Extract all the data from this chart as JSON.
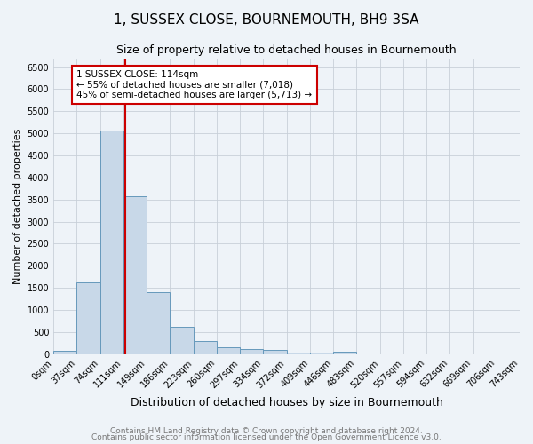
{
  "title": "1, SUSSEX CLOSE, BOURNEMOUTH, BH9 3SA",
  "subtitle": "Size of property relative to detached houses in Bournemouth",
  "xlabel": "Distribution of detached houses by size in Bournemouth",
  "ylabel": "Number of detached properties",
  "footnote1": "Contains HM Land Registry data © Crown copyright and database right 2024.",
  "footnote2": "Contains public sector information licensed under the Open Government Licence v3.0.",
  "bin_labels": [
    "0sqm",
    "37sqm",
    "74sqm",
    "111sqm",
    "149sqm",
    "186sqm",
    "223sqm",
    "260sqm",
    "297sqm",
    "334sqm",
    "372sqm",
    "409sqm",
    "446sqm",
    "483sqm",
    "520sqm",
    "557sqm",
    "594sqm",
    "632sqm",
    "669sqm",
    "706sqm",
    "743sqm"
  ],
  "bar_values": [
    75,
    1630,
    5060,
    3570,
    1400,
    610,
    300,
    155,
    115,
    90,
    45,
    30,
    60,
    0,
    0,
    0,
    0,
    0,
    0,
    0
  ],
  "bar_color": "#c8d8e8",
  "bar_edge_color": "#6699bb",
  "property_line_x": 3,
  "property_line_color": "#cc0000",
  "annotation_text": "1 SUSSEX CLOSE: 114sqm\n← 55% of detached houses are smaller (7,018)\n45% of semi-detached houses are larger (5,713) →",
  "annotation_box_color": "#ffffff",
  "annotation_box_edge": "#cc0000",
  "ylim": [
    0,
    6700
  ],
  "bin_width": 1,
  "num_bins": 20,
  "yticks": [
    0,
    500,
    1000,
    1500,
    2000,
    2500,
    3000,
    3500,
    4000,
    4500,
    5000,
    5500,
    6000,
    6500
  ],
  "background_color": "#eef3f8",
  "title_fontsize": 11,
  "subtitle_fontsize": 9,
  "ylabel_fontsize": 8,
  "xlabel_fontsize": 9,
  "tick_fontsize": 7,
  "footnote_fontsize": 6.5
}
